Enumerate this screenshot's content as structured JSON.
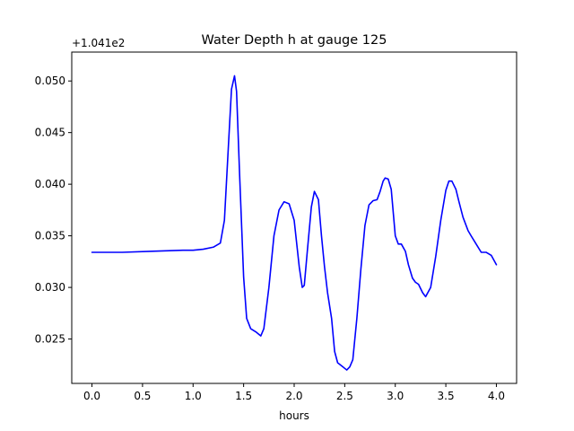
{
  "chart_data": {
    "type": "line",
    "title": "Water Depth h at gauge 125",
    "xlabel": "hours",
    "ylabel": "",
    "y_offset_label": "+1.041e2",
    "xlim": [
      -0.2,
      4.2
    ],
    "ylim": [
      0.0207,
      0.0528
    ],
    "xticks": [
      0.0,
      0.5,
      1.0,
      1.5,
      2.0,
      2.5,
      3.0,
      3.5,
      4.0
    ],
    "xtick_labels": [
      "0.0",
      "0.5",
      "1.0",
      "1.5",
      "2.0",
      "2.5",
      "3.0",
      "3.5",
      "4.0"
    ],
    "yticks": [
      0.025,
      0.03,
      0.035,
      0.04,
      0.045,
      0.05
    ],
    "ytick_labels": [
      "0.025",
      "0.030",
      "0.035",
      "0.040",
      "0.045",
      "0.050"
    ],
    "grid": false,
    "line_color": "#0000ff",
    "series": [
      {
        "x": [
          0.0,
          0.3,
          0.6,
          0.9,
          1.0,
          1.1,
          1.2,
          1.27,
          1.31,
          1.35,
          1.38,
          1.41,
          1.43,
          1.46,
          1.5,
          1.53,
          1.57,
          1.62,
          1.67,
          1.7,
          1.75,
          1.8,
          1.85,
          1.9,
          1.95,
          2.0,
          2.05,
          2.08,
          2.1,
          2.13,
          2.17,
          2.2,
          2.24,
          2.27,
          2.3,
          2.33,
          2.37,
          2.4,
          2.43,
          2.47,
          2.52,
          2.55,
          2.58,
          2.62,
          2.66,
          2.7,
          2.74,
          2.78,
          2.82,
          2.85,
          2.88,
          2.9,
          2.93,
          2.96,
          3.0,
          3.03,
          3.06,
          3.1,
          3.13,
          3.17,
          3.2,
          3.23,
          3.27,
          3.3,
          3.35,
          3.4,
          3.45,
          3.5,
          3.53,
          3.56,
          3.6,
          3.63,
          3.67,
          3.72,
          3.75,
          3.8,
          3.85,
          3.9,
          3.95,
          4.0
        ],
        "y": [
          0.0334,
          0.0334,
          0.0335,
          0.0336,
          0.0336,
          0.0337,
          0.0339,
          0.0343,
          0.0365,
          0.0438,
          0.0492,
          0.0505,
          0.049,
          0.041,
          0.031,
          0.027,
          0.026,
          0.0257,
          0.0253,
          0.026,
          0.03,
          0.035,
          0.0375,
          0.0383,
          0.0381,
          0.0365,
          0.032,
          0.03,
          0.0302,
          0.0335,
          0.0378,
          0.0393,
          0.0385,
          0.035,
          0.032,
          0.0295,
          0.027,
          0.0238,
          0.0227,
          0.0224,
          0.022,
          0.0223,
          0.023,
          0.027,
          0.0318,
          0.036,
          0.038,
          0.0384,
          0.0385,
          0.0393,
          0.0403,
          0.0406,
          0.0405,
          0.0395,
          0.035,
          0.0342,
          0.0342,
          0.0335,
          0.0322,
          0.0309,
          0.0305,
          0.0303,
          0.0295,
          0.0291,
          0.03,
          0.033,
          0.0365,
          0.0394,
          0.0403,
          0.0403,
          0.0395,
          0.0383,
          0.0368,
          0.0355,
          0.035,
          0.0342,
          0.0334,
          0.0334,
          0.0331,
          0.0322
        ]
      }
    ]
  }
}
